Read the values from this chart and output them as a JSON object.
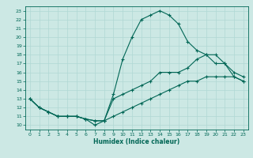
{
  "xlabel": "Humidex (Indice chaleur)",
  "bg_color": "#cce8e4",
  "grid_color": "#b0d8d4",
  "line_color": "#006655",
  "xlim": [
    -0.5,
    23.5
  ],
  "ylim": [
    9.5,
    23.5
  ],
  "xticks": [
    0,
    1,
    2,
    3,
    4,
    5,
    6,
    7,
    8,
    9,
    10,
    11,
    12,
    13,
    14,
    15,
    16,
    17,
    18,
    19,
    20,
    21,
    22,
    23
  ],
  "yticks": [
    10,
    11,
    12,
    13,
    14,
    15,
    16,
    17,
    18,
    19,
    20,
    21,
    22,
    23
  ],
  "line1_x": [
    0,
    1,
    2,
    3,
    4,
    5,
    6,
    7,
    8,
    9,
    10,
    11,
    12,
    13,
    14,
    15,
    16,
    17,
    18,
    19,
    20,
    21,
    22,
    23
  ],
  "line1_y": [
    13,
    12,
    11.5,
    11,
    11,
    11,
    10.7,
    10,
    10.5,
    13.5,
    17.5,
    20,
    22,
    22.5,
    23,
    22.5,
    21.5,
    19.5,
    18.5,
    18,
    18,
    17,
    15.5,
    15
  ],
  "line2_x": [
    0,
    1,
    2,
    3,
    4,
    5,
    6,
    7,
    8,
    9,
    10,
    11,
    12,
    13,
    14,
    15,
    16,
    17,
    18,
    19,
    20,
    21,
    22,
    23
  ],
  "line2_y": [
    13,
    12,
    11.5,
    11,
    11,
    11,
    10.7,
    10.5,
    10.5,
    13,
    13.5,
    14,
    14.5,
    15,
    16,
    16,
    16,
    16.5,
    17.5,
    18,
    17,
    17,
    16,
    15.5
  ],
  "line3_x": [
    0,
    1,
    2,
    3,
    4,
    5,
    6,
    7,
    8,
    9,
    10,
    11,
    12,
    13,
    14,
    15,
    16,
    17,
    18,
    19,
    20,
    21,
    22,
    23
  ],
  "line3_y": [
    13,
    12,
    11.5,
    11,
    11,
    11,
    10.7,
    10.5,
    10.5,
    11,
    11.5,
    12,
    12.5,
    13,
    13.5,
    14,
    14.5,
    15,
    15,
    15.5,
    15.5,
    15.5,
    15.5,
    15
  ]
}
